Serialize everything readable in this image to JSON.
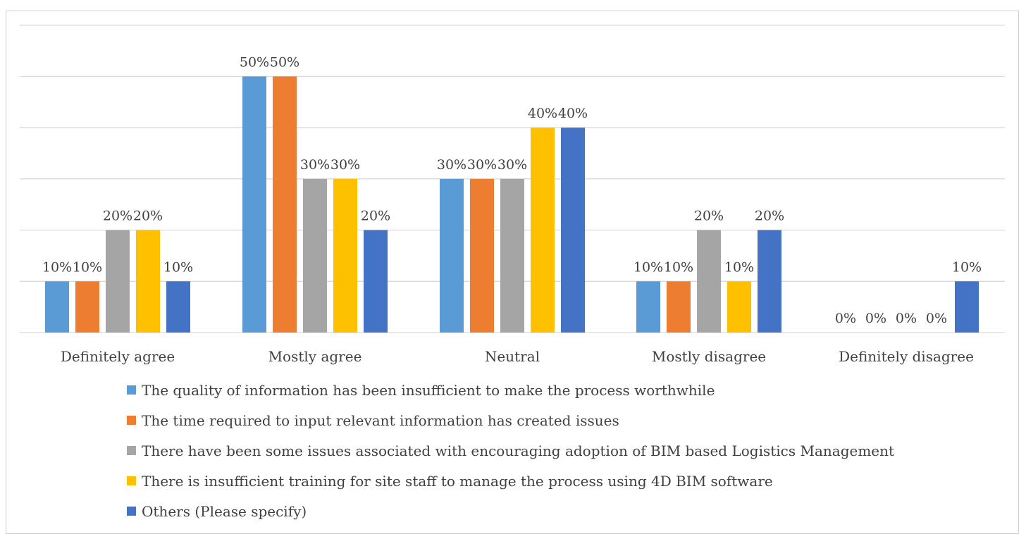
{
  "chart_data": {
    "type": "bar",
    "title": "",
    "xlabel": "",
    "ylabel": "",
    "ylim": [
      0,
      0.6
    ],
    "grid": true,
    "legend_position": "bottom",
    "categories": [
      "Definitely agree",
      "Mostly agree",
      "Neutral",
      "Mostly disagree",
      "Definitely disagree"
    ],
    "series": [
      {
        "name": "The quality of information has been insufficient to make the process worthwhile",
        "color": "#5B9BD5",
        "values": [
          0.1,
          0.5,
          0.3,
          0.1,
          0.0
        ],
        "labels": [
          "10%",
          "50%",
          "30%",
          "10%",
          "0%"
        ]
      },
      {
        "name": "The time required to input relevant information has created issues",
        "color": "#ED7D31",
        "values": [
          0.1,
          0.5,
          0.3,
          0.1,
          0.0
        ],
        "labels": [
          "10%",
          "50%",
          "30%",
          "10%",
          "0%"
        ]
      },
      {
        "name": "There have been some issues associated with encouraging adoption of BIM based Logistics Management",
        "color": "#A5A5A5",
        "values": [
          0.2,
          0.3,
          0.3,
          0.2,
          0.0
        ],
        "labels": [
          "20%",
          "30%",
          "30%",
          "20%",
          "0%"
        ]
      },
      {
        "name": "There is insufficient training for site staff to manage the process using 4D BIM software",
        "color": "#FFC000",
        "values": [
          0.2,
          0.3,
          0.4,
          0.1,
          0.0
        ],
        "labels": [
          "20%",
          "30%",
          "40%",
          "10%",
          "0%"
        ]
      },
      {
        "name": "Others (Please specify)",
        "color": "#4472C4",
        "values": [
          0.1,
          0.2,
          0.4,
          0.2,
          0.1
        ],
        "labels": [
          "10%",
          "20%",
          "40%",
          "20%",
          "10%"
        ]
      }
    ]
  }
}
